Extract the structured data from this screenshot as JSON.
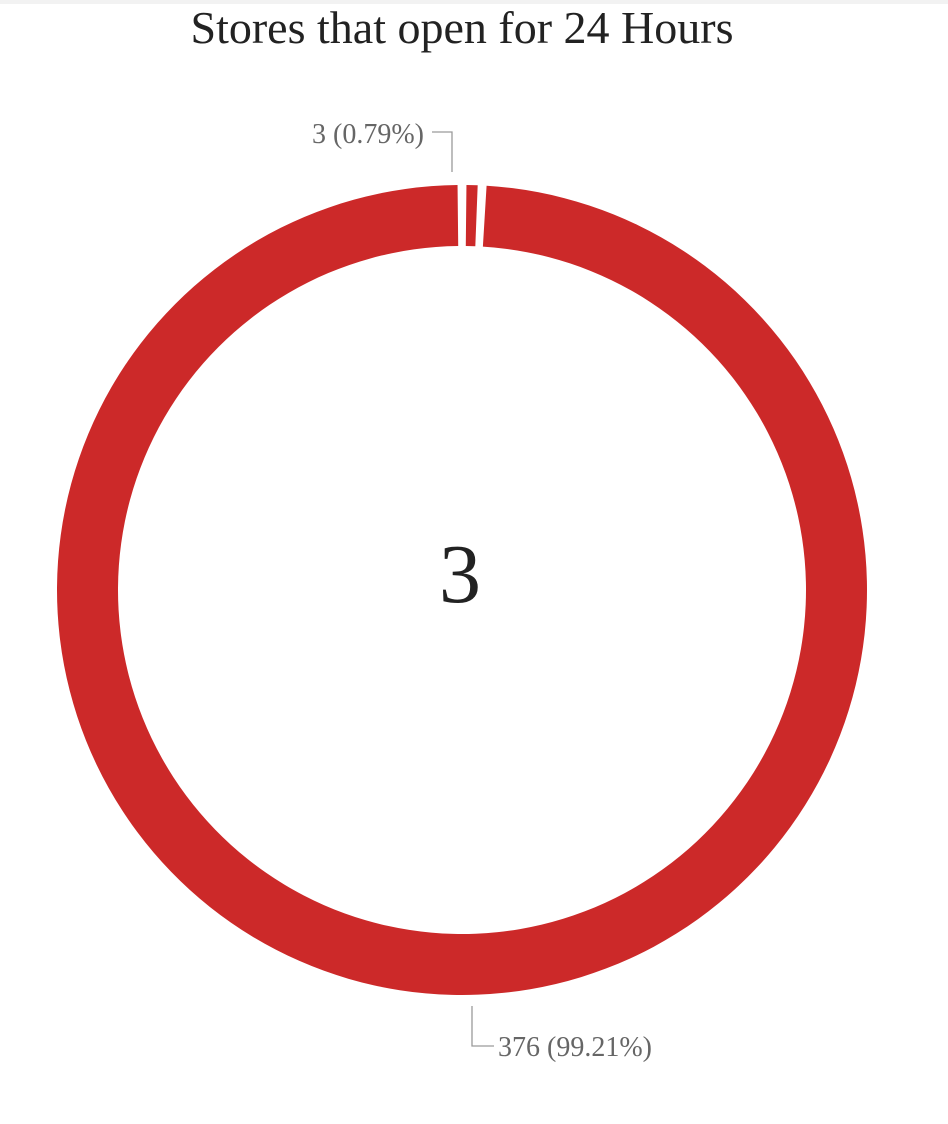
{
  "title": "Stores that open for 24 Hours",
  "center_value": "3",
  "colors": {
    "slice": "#cc2929",
    "leader": "#9a9a9a",
    "label": "#666666",
    "center": "#222222"
  },
  "chart_data": {
    "type": "pie",
    "title": "Stores that open for 24 Hours",
    "center_label": "3",
    "slices": [
      {
        "value": 3,
        "percent": 0.79,
        "label": "3 (0.79%)"
      },
      {
        "value": 376,
        "percent": 99.21,
        "label": "376 (99.21%)"
      }
    ]
  }
}
